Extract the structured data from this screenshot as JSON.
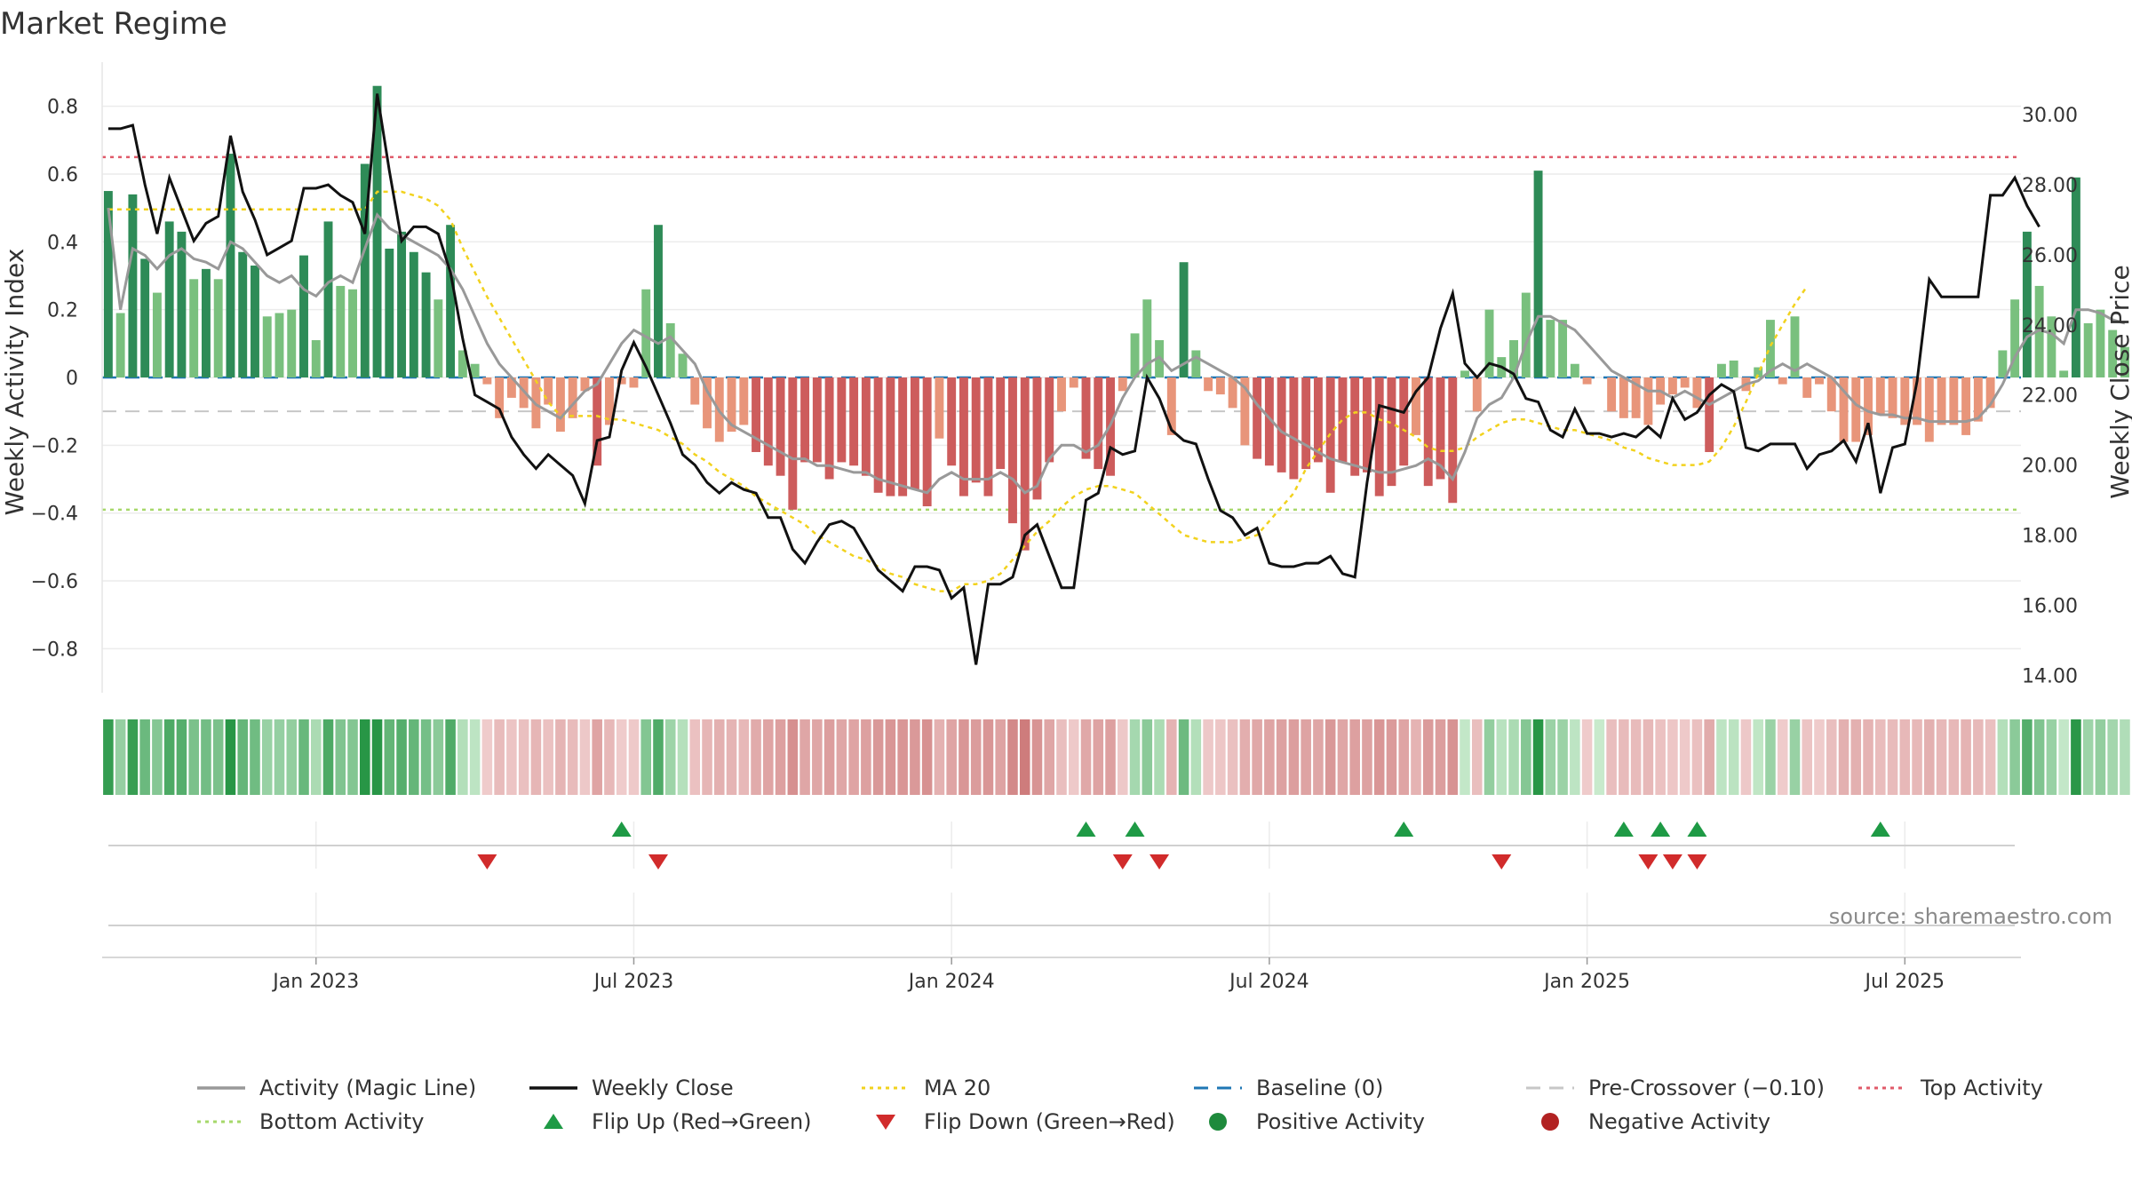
{
  "chart_data": {
    "type": "bar",
    "title": "Market Regime",
    "ylabel_left": "Weekly Activity Index",
    "ylabel_right": "Weekly Close Price",
    "source": "source: sharemaestro.com",
    "ylim_left": [
      -0.93,
      0.93
    ],
    "ylim_right": [
      13.5,
      31.5
    ],
    "y_ticks_left": [
      {
        "value": 0.8,
        "label": "0.8"
      },
      {
        "value": 0.6,
        "label": "0.6"
      },
      {
        "value": 0.4,
        "label": "0.4"
      },
      {
        "value": 0.2,
        "label": "0.2"
      },
      {
        "value": 0,
        "label": "0"
      },
      {
        "value": -0.2,
        "label": "−0.2"
      },
      {
        "value": -0.4,
        "label": "−0.4"
      },
      {
        "value": -0.6,
        "label": "−0.6"
      },
      {
        "value": -0.8,
        "label": "−0.8"
      }
    ],
    "y_ticks_right": [
      {
        "value": 30,
        "label": "30.00"
      },
      {
        "value": 28,
        "label": "28.00"
      },
      {
        "value": 26,
        "label": "26.00"
      },
      {
        "value": 24,
        "label": "24.00"
      },
      {
        "value": 22,
        "label": "22.00"
      },
      {
        "value": 20,
        "label": "20.00"
      },
      {
        "value": 18,
        "label": "18.00"
      },
      {
        "value": 16,
        "label": "16.00"
      },
      {
        "value": 14,
        "label": "14.00"
      }
    ],
    "x_ticks": [
      {
        "week": 17,
        "label": "Jan 2023"
      },
      {
        "week": 43,
        "label": "Jul 2023"
      },
      {
        "week": 69,
        "label": "Jan 2024"
      },
      {
        "week": 95,
        "label": "Jul 2024"
      },
      {
        "week": 121,
        "label": "Jan 2025"
      },
      {
        "week": 147,
        "label": "Jul 2025"
      }
    ],
    "weeks_count": 157,
    "top_activity": 0.65,
    "bottom_activity": -0.39,
    "pre_crossover": -0.1,
    "activity_bars": [
      0.55,
      0.19,
      0.54,
      0.35,
      0.25,
      0.46,
      0.43,
      0.29,
      0.32,
      0.29,
      0.66,
      0.37,
      0.33,
      0.18,
      0.19,
      0.2,
      0.36,
      0.11,
      0.46,
      0.27,
      0.26,
      0.63,
      0.86,
      0.38,
      0.43,
      0.37,
      0.31,
      0.23,
      0.45,
      0.08,
      0.04,
      -0.02,
      -0.12,
      -0.06,
      -0.09,
      -0.15,
      -0.08,
      -0.16,
      -0.12,
      -0.04,
      -0.26,
      -0.14,
      -0.02,
      -0.03,
      0.26,
      0.45,
      0.16,
      0.07,
      -0.08,
      -0.15,
      -0.19,
      -0.16,
      -0.14,
      -0.22,
      -0.26,
      -0.29,
      -0.39,
      -0.25,
      -0.25,
      -0.3,
      -0.25,
      -0.26,
      -0.29,
      -0.34,
      -0.35,
      -0.35,
      -0.33,
      -0.38,
      -0.18,
      -0.26,
      -0.35,
      -0.31,
      -0.35,
      -0.27,
      -0.43,
      -0.51,
      -0.36,
      -0.25,
      -0.1,
      -0.03,
      -0.24,
      -0.27,
      -0.29,
      -0.04,
      0.13,
      0.23,
      0.11,
      -0.17,
      0.34,
      0.08,
      -0.04,
      -0.05,
      -0.09,
      -0.2,
      -0.24,
      -0.26,
      -0.28,
      -0.3,
      -0.27,
      -0.25,
      -0.34,
      -0.25,
      -0.29,
      -0.28,
      -0.35,
      -0.32,
      -0.26,
      -0.17,
      -0.32,
      -0.3,
      -0.37,
      0.02,
      -0.1,
      0.2,
      0.06,
      0.11,
      0.25,
      0.61,
      0.17,
      0.17,
      0.04,
      -0.02,
      0.0,
      -0.1,
      -0.12,
      -0.12,
      -0.14,
      -0.08,
      -0.05,
      -0.03,
      -0.09,
      -0.22,
      0.04,
      0.05,
      -0.04,
      0.03,
      0.17,
      -0.02,
      0.18,
      -0.06,
      -0.02,
      -0.1,
      -0.19,
      -0.19,
      -0.17,
      -0.11,
      -0.12,
      -0.14,
      -0.14,
      -0.19,
      -0.14,
      -0.14,
      -0.17,
      -0.13,
      -0.09,
      0.08,
      0.23,
      0.43,
      0.27,
      0.18,
      0.02,
      0.59,
      0.16,
      0.2,
      0.14,
      0.09
    ],
    "series": [
      {
        "name": "Activity (Magic Line)",
        "color": "#999999",
        "values": [
          0.5,
          0.2,
          0.38,
          0.36,
          0.32,
          0.36,
          0.38,
          0.35,
          0.34,
          0.32,
          0.4,
          0.38,
          0.34,
          0.3,
          0.28,
          0.3,
          0.26,
          0.24,
          0.28,
          0.3,
          0.28,
          0.38,
          0.48,
          0.44,
          0.42,
          0.4,
          0.38,
          0.36,
          0.32,
          0.26,
          0.18,
          0.1,
          0.04,
          0.0,
          -0.04,
          -0.08,
          -0.1,
          -0.12,
          -0.08,
          -0.04,
          -0.02,
          0.04,
          0.1,
          0.14,
          0.12,
          0.1,
          0.12,
          0.08,
          0.04,
          -0.04,
          -0.1,
          -0.14,
          -0.16,
          -0.18,
          -0.2,
          -0.22,
          -0.24,
          -0.24,
          -0.26,
          -0.26,
          -0.27,
          -0.28,
          -0.28,
          -0.3,
          -0.31,
          -0.32,
          -0.33,
          -0.34,
          -0.3,
          -0.28,
          -0.3,
          -0.3,
          -0.3,
          -0.28,
          -0.3,
          -0.34,
          -0.32,
          -0.24,
          -0.2,
          -0.2,
          -0.22,
          -0.2,
          -0.14,
          -0.06,
          0.0,
          0.04,
          0.06,
          0.02,
          0.04,
          0.06,
          0.04,
          0.02,
          0.0,
          -0.03,
          -0.08,
          -0.12,
          -0.16,
          -0.18,
          -0.2,
          -0.22,
          -0.24,
          -0.25,
          -0.26,
          -0.27,
          -0.28,
          -0.28,
          -0.27,
          -0.26,
          -0.24,
          -0.26,
          -0.3,
          -0.22,
          -0.12,
          -0.08,
          -0.06,
          0.0,
          0.1,
          0.18,
          0.18,
          0.16,
          0.14,
          0.1,
          0.06,
          0.02,
          0.0,
          -0.02,
          -0.04,
          -0.04,
          -0.06,
          -0.04,
          -0.06,
          -0.08,
          -0.06,
          -0.04,
          -0.02,
          -0.01,
          0.02,
          0.04,
          0.02,
          0.04,
          0.02,
          0.0,
          -0.04,
          -0.08,
          -0.1,
          -0.11,
          -0.11,
          -0.12,
          -0.12,
          -0.13,
          -0.13,
          -0.13,
          -0.13,
          -0.12,
          -0.08,
          -0.02,
          0.06,
          0.12,
          0.14,
          0.13,
          0.1,
          0.2,
          0.2,
          0.19,
          0.17,
          0.16
        ]
      },
      {
        "name": "Weekly Close",
        "color": "#111111",
        "values": [
          29.6,
          29.6,
          29.7,
          28.0,
          26.6,
          28.2,
          27.3,
          26.4,
          26.9,
          27.1,
          29.4,
          27.8,
          27.0,
          26.0,
          26.2,
          26.4,
          27.9,
          27.9,
          28.0,
          27.7,
          27.5,
          26.6,
          30.6,
          28.4,
          26.4,
          26.8,
          26.8,
          26.6,
          25.5,
          23.6,
          22.0,
          21.8,
          21.6,
          20.8,
          20.3,
          19.9,
          20.3,
          20.0,
          19.7,
          18.9,
          20.7,
          20.8,
          22.7,
          23.5,
          22.8,
          22.0,
          21.2,
          20.3,
          20.0,
          19.5,
          19.2,
          19.5,
          19.3,
          19.2,
          18.5,
          18.5,
          17.6,
          17.2,
          17.8,
          18.3,
          18.4,
          18.2,
          17.6,
          17.0,
          16.7,
          16.4,
          17.1,
          17.1,
          17.0,
          16.2,
          16.5,
          14.3,
          16.6,
          16.6,
          16.8,
          18.0,
          18.3,
          17.4,
          16.5,
          16.5,
          19.0,
          19.2,
          20.5,
          20.3,
          20.4,
          22.5,
          21.9,
          21.0,
          20.7,
          20.6,
          19.6,
          18.7,
          18.5,
          18.0,
          18.2,
          17.2,
          17.1,
          17.1,
          17.2,
          17.2,
          17.4,
          16.9,
          16.8,
          19.5,
          21.7,
          21.6,
          21.5,
          22.1,
          22.5,
          23.9,
          24.9,
          22.9,
          22.5,
          22.9,
          22.8,
          22.6,
          21.9,
          21.8,
          21.0,
          20.8,
          21.6,
          20.9,
          20.9,
          20.8,
          20.9,
          20.8,
          21.1,
          20.8,
          21.9,
          21.3,
          21.5,
          22.0,
          22.3,
          22.1,
          20.5,
          20.4,
          20.6,
          20.6,
          20.6,
          19.9,
          20.3,
          20.4,
          20.7,
          20.1,
          21.2,
          19.2,
          20.5,
          20.6,
          22.4,
          25.3,
          24.8,
          24.8,
          24.8,
          24.8,
          27.7,
          27.7,
          28.2,
          27.4,
          26.8
        ]
      },
      {
        "name": "MA 20",
        "color": "#f2d21e",
        "values": [
          27.3,
          27.3,
          27.3,
          27.3,
          27.3,
          27.3,
          27.3,
          27.3,
          27.3,
          27.3,
          27.3,
          27.3,
          27.3,
          27.3,
          27.3,
          27.3,
          27.3,
          27.3,
          27.3,
          27.3,
          27.3,
          27.3,
          27.8,
          27.8,
          27.8,
          27.7,
          27.6,
          27.4,
          27.0,
          26.2,
          25.5,
          24.8,
          24.2,
          23.6,
          23.0,
          22.4,
          21.8,
          21.4,
          21.4,
          21.4,
          21.4,
          21.3,
          21.3,
          21.2,
          21.1,
          21.0,
          20.8,
          20.6,
          20.3,
          20.1,
          19.8,
          19.6,
          19.4,
          19.1,
          18.9,
          18.7,
          18.5,
          18.3,
          18.0,
          17.8,
          17.6,
          17.4,
          17.3,
          17.1,
          16.9,
          16.8,
          16.6,
          16.5,
          16.4,
          16.4,
          16.6,
          16.6,
          16.7,
          16.9,
          17.3,
          17.7,
          18.1,
          18.4,
          18.8,
          19.1,
          19.3,
          19.4,
          19.4,
          19.3,
          19.2,
          18.9,
          18.6,
          18.3,
          18.0,
          17.9,
          17.8,
          17.8,
          17.8,
          17.9,
          18.0,
          18.4,
          18.8,
          19.2,
          19.9,
          20.4,
          20.9,
          21.3,
          21.5,
          21.5,
          21.3,
          21.2,
          21.0,
          20.8,
          20.5,
          20.4,
          20.4,
          20.5,
          20.8,
          21.0,
          21.2,
          21.3,
          21.3,
          21.2,
          21.1,
          21.0,
          21.0,
          20.9,
          20.8,
          20.7,
          20.5,
          20.4,
          20.2,
          20.1,
          20.0,
          20.0,
          20.0,
          20.1,
          20.5,
          21.1,
          21.8,
          22.6,
          23.4,
          24.0,
          24.6,
          25.1
        ]
      }
    ],
    "flip_up_weeks": [
      42,
      80,
      84,
      106,
      124,
      127,
      130,
      145
    ],
    "flip_down_weeks": [
      31,
      45,
      83,
      86,
      114,
      126,
      128,
      130
    ],
    "legend": [
      {
        "label": "Activity (Magic Line)",
        "kind": "line",
        "color": "#999999"
      },
      {
        "label": "Weekly Close",
        "kind": "line",
        "color": "#111111"
      },
      {
        "label": "MA 20",
        "kind": "dotted",
        "color": "#f2d21e"
      },
      {
        "label": "Baseline (0)",
        "kind": "dashed",
        "color": "#1f77b4"
      },
      {
        "label": "Pre-Crossover (−0.10)",
        "kind": "dashed",
        "color": "#c7c7c7"
      },
      {
        "label": "Top Activity",
        "kind": "dotted",
        "color": "#e05a6a"
      },
      {
        "label": "Bottom Activity",
        "kind": "dotted",
        "color": "#a6d86a"
      },
      {
        "label": "Flip Up (Red→Green)",
        "kind": "tri-up",
        "color": "#1e9a45"
      },
      {
        "label": "Flip Down (Green→Red)",
        "kind": "tri-down",
        "color": "#d12b2b"
      },
      {
        "label": "Positive Activity",
        "kind": "dot",
        "color": "#1e8a3c"
      },
      {
        "label": "Negative Activity",
        "kind": "dot",
        "color": "#b22222"
      }
    ]
  }
}
